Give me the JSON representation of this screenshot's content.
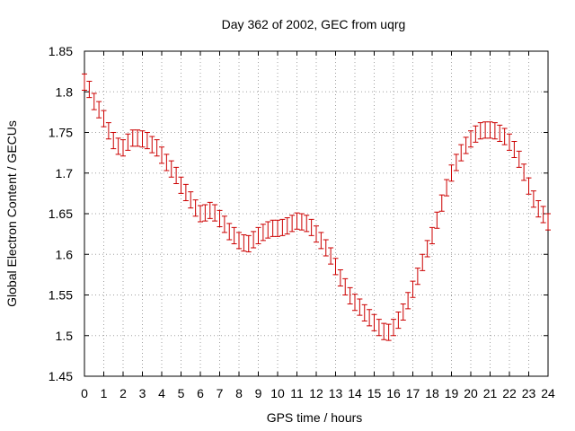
{
  "chart_data": {
    "type": "scatter",
    "title": "Day 362 of 2002, GEC from uqrg",
    "xlabel": "GPS time / hours",
    "ylabel": "Global Electron Content / GECUs",
    "xlim": [
      0,
      24
    ],
    "ylim": [
      1.45,
      1.85
    ],
    "xticks": [
      0,
      1,
      2,
      3,
      4,
      5,
      6,
      7,
      8,
      9,
      10,
      11,
      12,
      13,
      14,
      15,
      16,
      17,
      18,
      19,
      20,
      21,
      22,
      23,
      24
    ],
    "yticks": [
      1.45,
      1.5,
      1.55,
      1.6,
      1.65,
      1.7,
      1.75,
      1.8,
      1.85
    ],
    "ytick_labels": [
      "1.45",
      "1.5",
      "1.55",
      "1.6",
      "1.65",
      "1.7",
      "1.75",
      "1.8",
      "1.85"
    ],
    "grid": true,
    "series_color": "#cc0000",
    "series": [
      {
        "error": 0.01,
        "x": [
          0.0,
          0.25,
          0.5,
          0.75,
          1.0,
          1.25,
          1.5,
          1.75,
          2.0,
          2.25,
          2.5,
          2.75,
          3.0,
          3.25,
          3.5,
          3.75,
          4.0,
          4.25,
          4.5,
          4.75,
          5.0,
          5.25,
          5.5,
          5.75,
          6.0,
          6.25,
          6.5,
          6.75,
          7.0,
          7.25,
          7.5,
          7.75,
          8.0,
          8.25,
          8.5,
          8.75,
          9.0,
          9.25,
          9.5,
          9.75,
          10.0,
          10.25,
          10.5,
          10.75,
          11.0,
          11.25,
          11.5,
          11.75,
          12.0,
          12.25,
          12.5,
          12.75,
          13.0,
          13.25,
          13.5,
          13.75,
          14.0,
          14.25,
          14.5,
          14.75,
          15.0,
          15.25,
          15.5,
          15.75,
          16.0,
          16.25,
          16.5,
          16.75,
          17.0,
          17.25,
          17.5,
          17.75,
          18.0,
          18.25,
          18.5,
          18.75,
          19.0,
          19.25,
          19.5,
          19.75,
          20.0,
          20.25,
          20.5,
          20.75,
          21.0,
          21.25,
          21.5,
          21.75,
          22.0,
          22.25,
          22.5,
          22.75,
          23.0,
          23.25,
          23.5,
          23.75,
          24.0
        ],
        "y": [
          1.812,
          1.803,
          1.788,
          1.778,
          1.767,
          1.752,
          1.74,
          1.733,
          1.731,
          1.738,
          1.743,
          1.743,
          1.742,
          1.74,
          1.735,
          1.731,
          1.722,
          1.713,
          1.705,
          1.697,
          1.685,
          1.676,
          1.667,
          1.657,
          1.65,
          1.651,
          1.654,
          1.651,
          1.644,
          1.637,
          1.628,
          1.623,
          1.617,
          1.614,
          1.613,
          1.618,
          1.623,
          1.627,
          1.63,
          1.632,
          1.632,
          1.633,
          1.635,
          1.638,
          1.641,
          1.64,
          1.638,
          1.633,
          1.625,
          1.617,
          1.608,
          1.598,
          1.585,
          1.571,
          1.56,
          1.549,
          1.541,
          1.535,
          1.528,
          1.522,
          1.516,
          1.51,
          1.505,
          1.504,
          1.51,
          1.519,
          1.529,
          1.543,
          1.557,
          1.573,
          1.59,
          1.607,
          1.623,
          1.642,
          1.663,
          1.682,
          1.7,
          1.713,
          1.725,
          1.734,
          1.742,
          1.748,
          1.752,
          1.753,
          1.753,
          1.752,
          1.749,
          1.745,
          1.738,
          1.729,
          1.717,
          1.701,
          1.684,
          1.668,
          1.656,
          1.649,
          1.64
        ]
      }
    ]
  }
}
